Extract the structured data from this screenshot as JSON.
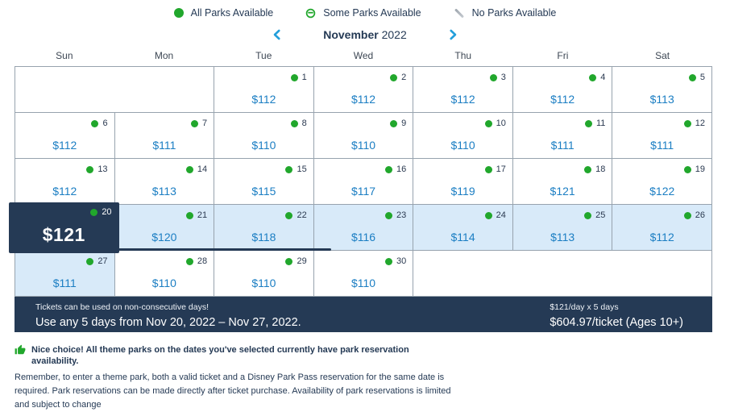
{
  "legend": {
    "items": [
      {
        "name": "all-parks",
        "label": "All Parks Available"
      },
      {
        "name": "some-parks",
        "label": "Some Parks Available"
      },
      {
        "name": "no-parks",
        "label": "No Parks Available"
      }
    ]
  },
  "month_nav": {
    "month": "November",
    "year": "2022"
  },
  "calendar": {
    "day_headers": [
      "Sun",
      "Mon",
      "Tue",
      "Wed",
      "Thu",
      "Fri",
      "Sat"
    ],
    "weeks": [
      {
        "cells": [
          {
            "empty": true,
            "span": 2
          },
          {
            "day": "1",
            "price": "$112"
          },
          {
            "day": "2",
            "price": "$112"
          },
          {
            "day": "3",
            "price": "$112"
          },
          {
            "day": "4",
            "price": "$112"
          },
          {
            "day": "5",
            "price": "$113"
          }
        ]
      },
      {
        "cells": [
          {
            "day": "6",
            "price": "$112"
          },
          {
            "day": "7",
            "price": "$111"
          },
          {
            "day": "8",
            "price": "$110"
          },
          {
            "day": "9",
            "price": "$110"
          },
          {
            "day": "10",
            "price": "$110"
          },
          {
            "day": "11",
            "price": "$111"
          },
          {
            "day": "12",
            "price": "$111"
          }
        ]
      },
      {
        "cells": [
          {
            "day": "13",
            "price": "$112"
          },
          {
            "day": "14",
            "price": "$113"
          },
          {
            "day": "15",
            "price": "$115"
          },
          {
            "day": "16",
            "price": "$117"
          },
          {
            "day": "17",
            "price": "$119"
          },
          {
            "day": "18",
            "price": "$121"
          },
          {
            "day": "19",
            "price": "$122"
          }
        ]
      },
      {
        "cells": [
          {
            "day": "20",
            "price": "$121",
            "selected": true,
            "highlight": true
          },
          {
            "day": "21",
            "price": "$120",
            "highlight": true
          },
          {
            "day": "22",
            "price": "$118",
            "highlight": true
          },
          {
            "day": "23",
            "price": "$116",
            "highlight": true
          },
          {
            "day": "24",
            "price": "$114",
            "highlight": true
          },
          {
            "day": "25",
            "price": "$113",
            "highlight": true
          },
          {
            "day": "26",
            "price": "$112",
            "highlight": true
          }
        ]
      },
      {
        "cells": [
          {
            "day": "27",
            "price": "$111",
            "highlight": true
          },
          {
            "day": "28",
            "price": "$110"
          },
          {
            "day": "29",
            "price": "$110"
          },
          {
            "day": "30",
            "price": "$110"
          },
          {
            "empty": true,
            "span": 3
          }
        ]
      }
    ]
  },
  "summary_bar": {
    "note": "Tickets can be used on non-consecutive days!",
    "range": "Use any 5 days from Nov 20, 2022 – Nov 27, 2022.",
    "rate": "$121/day x 5 days",
    "total": "$604.97/ticket (Ages 10+)"
  },
  "footnote": {
    "headline": "Nice choice! All theme parks on the dates you've selected currently have park reservation availability.",
    "body": "Remember, to enter a theme park, both a valid ticket and a Disney Park Pass reservation for the same date is required. Park reservations can be made directly after ticket purchase. Availability of park reservations is limited and subject to change"
  },
  "colors": {
    "navy": "#253A55",
    "price_blue": "#1B7EC3",
    "green": "#21A72C",
    "highlight_blue": "#D8EAF9",
    "chevron_blue": "#239FDB",
    "border_gray": "#97A3AE"
  }
}
